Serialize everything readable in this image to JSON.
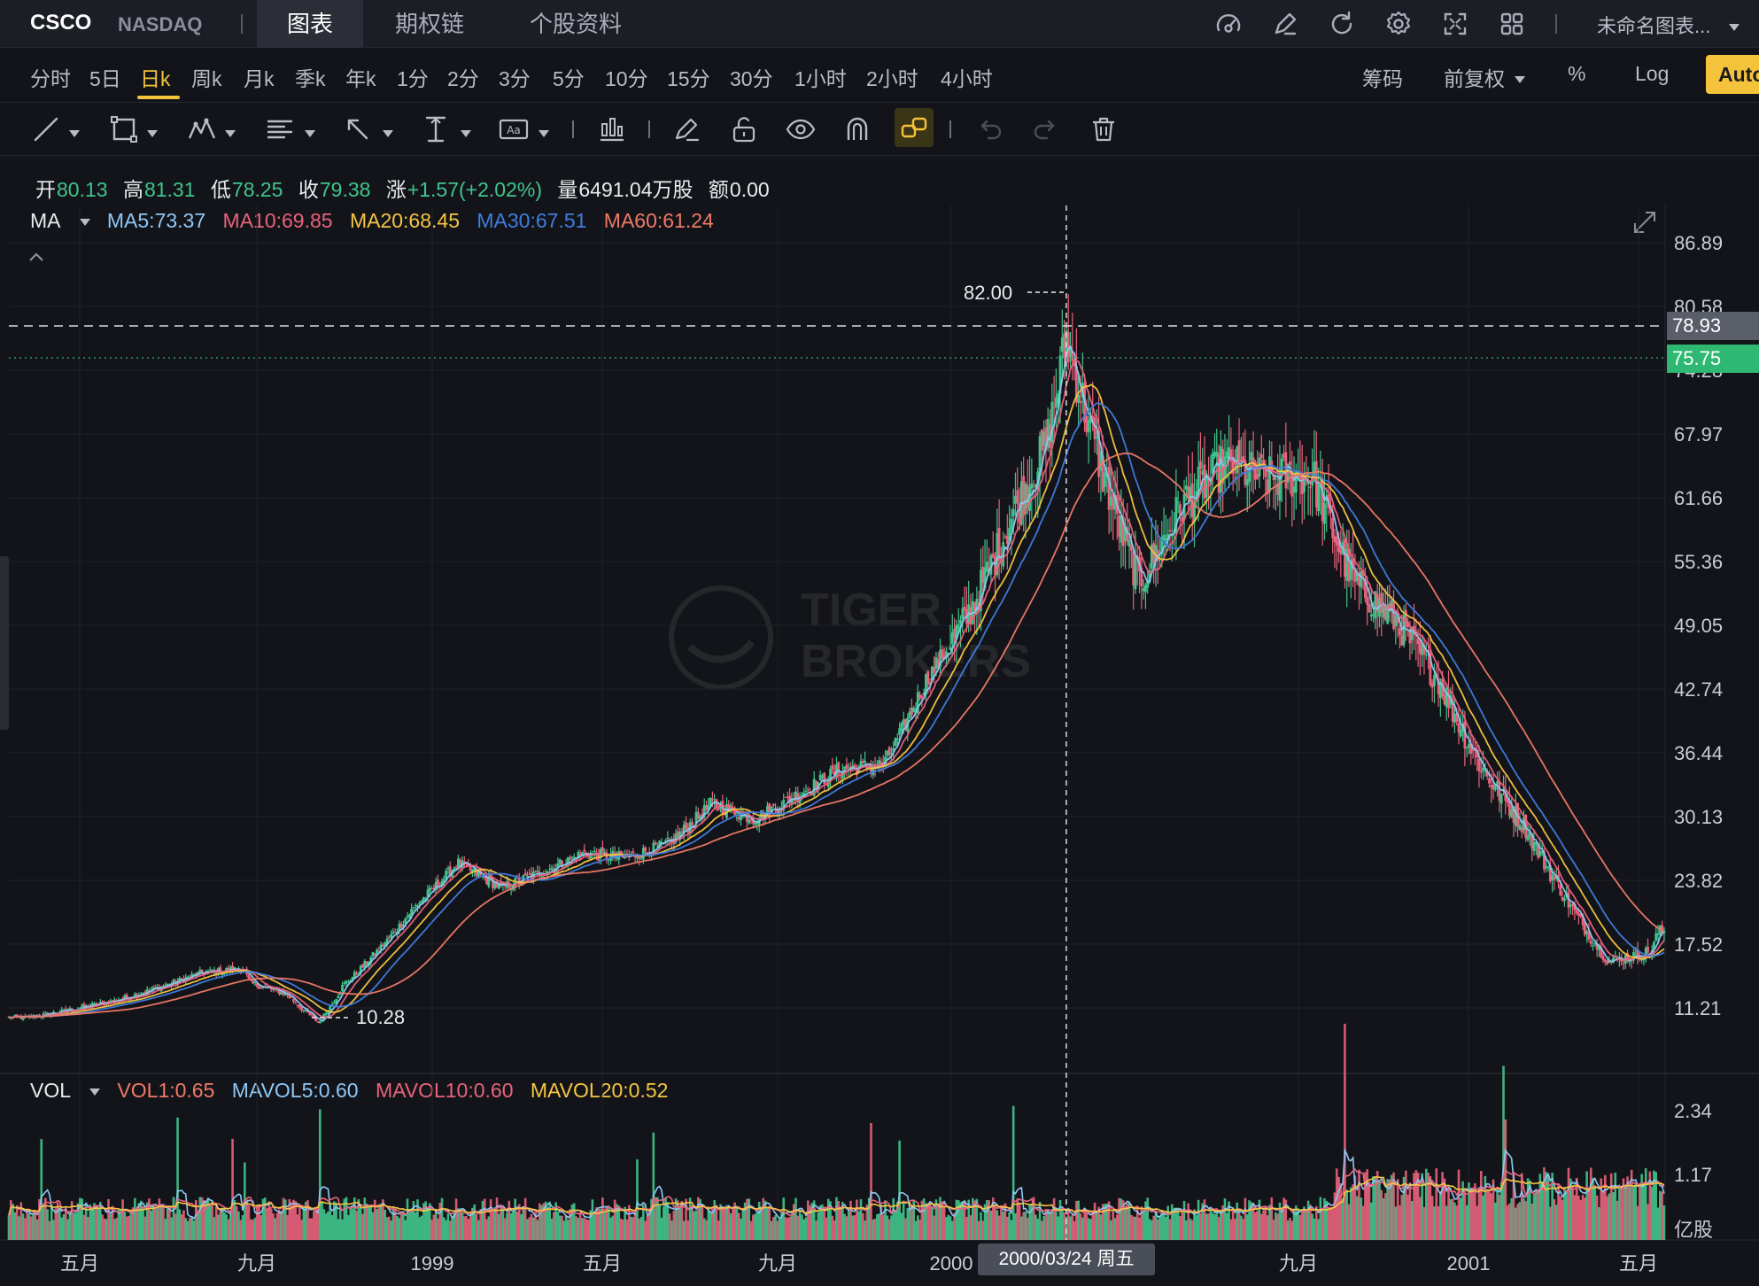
{
  "header": {
    "symbol": "CSCO",
    "exchange": "NASDAQ",
    "tabs": [
      {
        "label": "图表",
        "active": true
      },
      {
        "label": "期权链",
        "active": false
      },
      {
        "label": "个股资料",
        "active": false
      }
    ],
    "icons": [
      "speedometer-icon",
      "pencil-icon",
      "refresh-icon",
      "gear-icon",
      "fullscreen-icon",
      "layout-grid-icon"
    ],
    "chart_name": "未命名图表..."
  },
  "timeframes": {
    "items": [
      "分时",
      "5日",
      "日k",
      "周k",
      "月k",
      "季k",
      "年k",
      "1分",
      "2分",
      "3分",
      "5分",
      "10分",
      "15分",
      "30分",
      "1小时",
      "2小时",
      "4小时"
    ],
    "active": "日k",
    "right": {
      "chips": "筹码",
      "adjust": "前复权",
      "percent": "%",
      "log": "Log",
      "auto": "Auto"
    }
  },
  "quote": {
    "open_label": "开",
    "open": "80.13",
    "high_label": "高",
    "high": "81.31",
    "low_label": "低",
    "low": "78.25",
    "close_label": "收",
    "close": "79.38",
    "change_label": "涨",
    "change": "+1.57(+2.02%)",
    "volume_label": "量",
    "volume": "6491.04万股",
    "amount_label": "额",
    "amount": "0.00"
  },
  "ma": {
    "label": "MA",
    "items": [
      {
        "text": "MA5:73.37",
        "color": "#8fc7f5"
      },
      {
        "text": "MA10:69.85",
        "color": "#e8637b"
      },
      {
        "text": "MA20:68.45",
        "color": "#f5c542"
      },
      {
        "text": "MA30:67.51",
        "color": "#3f7de0"
      },
      {
        "text": "MA60:61.24",
        "color": "#f07a68"
      }
    ]
  },
  "vol": {
    "label": "VOL",
    "items": [
      {
        "text": "VOL1:0.65",
        "color": "#f07a68"
      },
      {
        "text": "MAVOL5:0.60",
        "color": "#8fc7f5"
      },
      {
        "text": "MAVOL10:0.60",
        "color": "#e8637b"
      },
      {
        "text": "MAVOL20:0.52",
        "color": "#f5c542"
      }
    ],
    "unit": "亿股",
    "y_ticks": [
      "2.34",
      "1.17"
    ]
  },
  "chart_data": {
    "type": "line",
    "price_ticks": [
      "86.89",
      "80.58",
      "74.28",
      "67.97",
      "61.66",
      "55.36",
      "49.05",
      "42.74",
      "36.44",
      "30.13",
      "23.82",
      "17.52",
      "11.21"
    ],
    "x_ticks": [
      "五月",
      "九月",
      "1999",
      "五月",
      "九月",
      "2000",
      "九月",
      "2001",
      "五月"
    ],
    "high_marker": "82.00",
    "low_marker": "10.28",
    "crosshair_price": "78.93",
    "last_price": "75.75",
    "crosshair_date": "2000/03/24 周五",
    "colors": {
      "up": "#41c48c",
      "down": "#e8637b"
    },
    "price_series": [
      [
        "1998-03",
        10.8
      ],
      [
        "1998-04",
        11.6
      ],
      [
        "1998-05",
        12.5
      ],
      [
        "1998-06",
        13.8
      ],
      [
        "1998-07",
        15.3
      ],
      [
        "1998-08",
        15.8
      ],
      [
        "1998-08-20",
        14.3
      ],
      [
        "1998-09",
        13.2
      ],
      [
        "1998-10-08",
        10.28
      ],
      [
        "1998-10-25",
        14.0
      ],
      [
        "1998-11",
        17.0
      ],
      [
        "1998-12",
        22.0
      ],
      [
        "1999-01",
        26.5
      ],
      [
        "1999-02",
        24.0
      ],
      [
        "1999-03",
        25.5
      ],
      [
        "1999-04",
        27.5
      ],
      [
        "1999-05",
        27.0
      ],
      [
        "1999-06",
        28.5
      ],
      [
        "1999-07",
        32.5
      ],
      [
        "1999-08",
        31.0
      ],
      [
        "1999-09",
        33.5
      ],
      [
        "1999-10",
        36.0
      ],
      [
        "1999-11",
        36.5
      ],
      [
        "1999-12",
        45.0
      ],
      [
        "2000-01",
        52.0
      ],
      [
        "2000-02",
        62.0
      ],
      [
        "2000-03-10",
        69.0
      ],
      [
        "2000-03-24",
        80.0
      ],
      [
        "2000-04",
        68.0
      ],
      [
        "2000-05",
        55.0
      ],
      [
        "2000-06",
        63.0
      ],
      [
        "2000-07",
        67.0
      ],
      [
        "2000-08",
        65.5
      ],
      [
        "2000-09",
        66.0
      ],
      [
        "2000-10",
        55.0
      ],
      [
        "2000-11",
        51.0
      ],
      [
        "2000-12",
        45.0
      ],
      [
        "2001-01",
        36.0
      ],
      [
        "2001-02",
        30.0
      ],
      [
        "2001-03",
        23.0
      ],
      [
        "2001-04",
        16.5
      ],
      [
        "2001-05",
        17.5
      ],
      [
        "2001-05-20",
        19.5
      ]
    ]
  }
}
